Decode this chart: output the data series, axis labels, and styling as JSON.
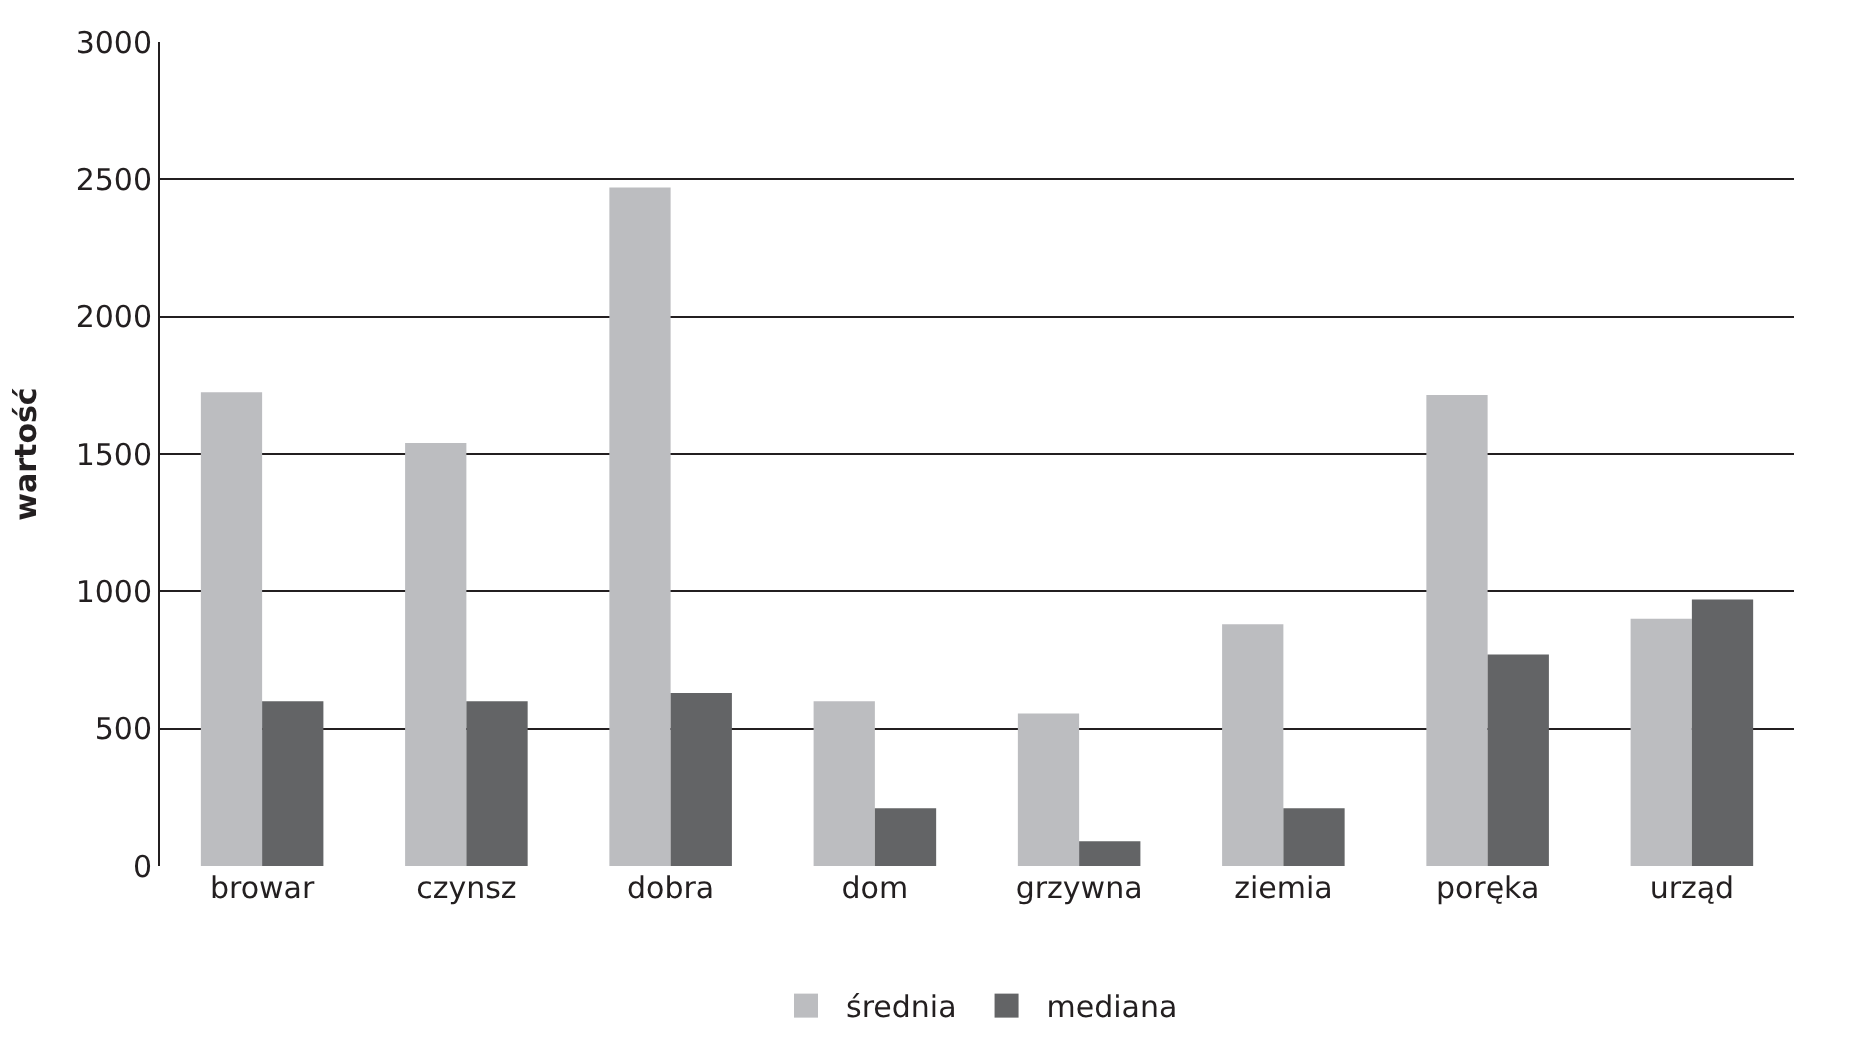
{
  "chart_data": {
    "type": "bar",
    "ylabel": "wartość",
    "categories": [
      "browar",
      "czynsz",
      "dobra",
      "dom",
      "grzywna",
      "ziemia",
      "poręka",
      "urząd"
    ],
    "series": [
      {
        "name": "średnia",
        "color": "#bcbdc0",
        "values": [
          1725,
          1540,
          2470,
          600,
          555,
          880,
          1715,
          900
        ]
      },
      {
        "name": "mediana",
        "color": "#636466",
        "values": [
          600,
          600,
          630,
          210,
          90,
          210,
          770,
          970
        ]
      }
    ],
    "ylim": [
      0,
      3000
    ],
    "yticks": [
      0,
      500,
      1000,
      1500,
      2000,
      2500,
      3000
    ],
    "grid": "y",
    "legend": "bottom"
  }
}
